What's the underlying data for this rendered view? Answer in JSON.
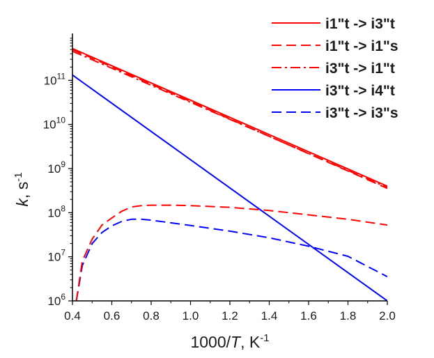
{
  "chart_data": {
    "type": "line",
    "xlabel": {
      "pre": "1000/",
      "italic": "T",
      "post": ", K",
      "sup": "-1"
    },
    "ylabel": {
      "italic": "k",
      "post": ", s",
      "sup": "-1"
    },
    "xlim": [
      0.4,
      2.0
    ],
    "ylim_log10": [
      6,
      12
    ],
    "y_scale": "log",
    "x_ticks": [
      0.4,
      0.6,
      0.8,
      1.0,
      1.2,
      1.4,
      1.6,
      1.8,
      2.0
    ],
    "x_tick_labels": [
      "0.4",
      "0.6",
      "0.8",
      "1.0",
      "1.2",
      "1.4",
      "1.6",
      "1.8",
      "2.0"
    ],
    "y_ticks_log10": [
      6,
      7,
      8,
      9,
      10,
      11
    ],
    "y_tick_labels": [
      {
        "base": "10",
        "exp": "6"
      },
      {
        "base": "10",
        "exp": "7"
      },
      {
        "base": "10",
        "exp": "8"
      },
      {
        "base": "10",
        "exp": "9"
      },
      {
        "base": "10",
        "exp": "10"
      },
      {
        "base": "10",
        "exp": "11"
      }
    ],
    "legend_position": "top-right",
    "grid": false,
    "series": [
      {
        "name": "i1\"t -> i3\"t",
        "color": "#ff0000",
        "dash": "solid",
        "x": [
          0.4,
          2.0
        ],
        "log10_y": [
          11.72,
          8.6
        ]
      },
      {
        "name": "i1\"t -> i1\"s",
        "color": "#ff0000",
        "dash": "dash",
        "x": [
          0.4,
          2.0
        ],
        "log10_y": [
          11.7,
          8.55
        ]
      },
      {
        "name": "i3\"t -> i1\"t",
        "color": "#ff0000",
        "dash": "dashdot",
        "x": [
          0.4,
          2.0
        ],
        "log10_y": [
          11.66,
          8.57
        ]
      },
      {
        "name": "i3\"t -> i4\"t",
        "color": "#0000ff",
        "dash": "solid",
        "x": [
          0.4,
          2.0
        ],
        "log10_y": [
          11.12,
          6.0
        ]
      },
      {
        "name": "i3\"t -> i3\"s",
        "color": "#0000ff",
        "dash": "dash",
        "x": [
          0.42,
          0.45,
          0.5,
          0.55,
          0.6,
          0.65,
          0.7,
          0.75,
          0.8,
          0.9,
          1.0,
          1.2,
          1.4,
          1.6,
          1.8,
          2.0
        ],
        "log10_y": [
          6.0,
          6.8,
          7.3,
          7.55,
          7.7,
          7.8,
          7.85,
          7.85,
          7.83,
          7.77,
          7.71,
          7.58,
          7.43,
          7.24,
          7.01,
          6.55
        ]
      },
      {
        "name": "",
        "color": "#ff0000",
        "dash": "dash",
        "x": [
          0.42,
          0.45,
          0.5,
          0.55,
          0.6,
          0.65,
          0.7,
          0.75,
          0.8,
          0.9,
          1.0,
          1.2,
          1.4,
          1.6,
          1.8,
          2.0
        ],
        "log10_y": [
          6.0,
          6.9,
          7.4,
          7.72,
          7.88,
          8.03,
          8.13,
          8.16,
          8.17,
          8.17,
          8.16,
          8.12,
          8.05,
          7.95,
          7.85,
          7.72
        ]
      }
    ]
  }
}
